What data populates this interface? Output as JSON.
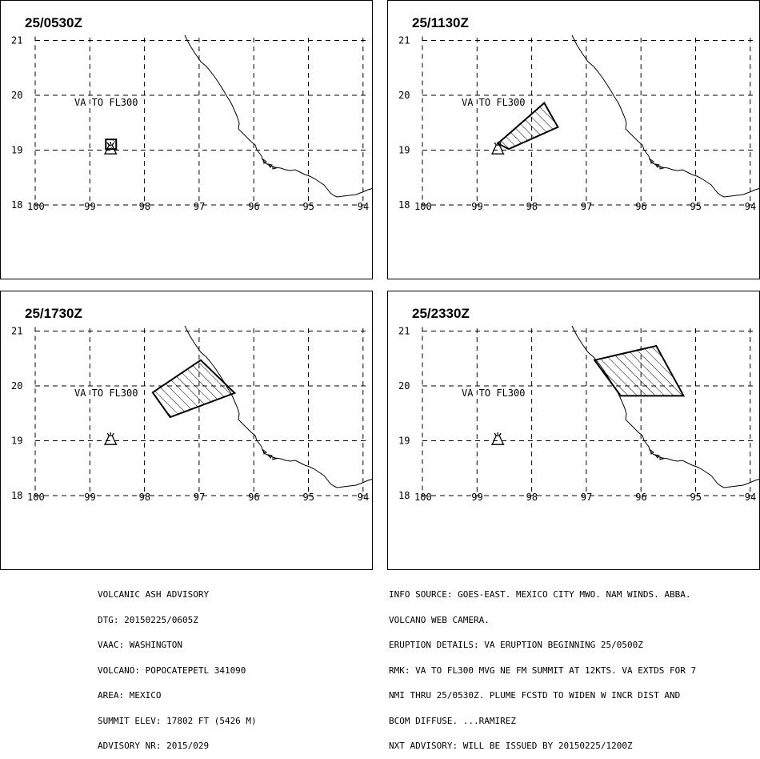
{
  "panels": [
    {
      "time": "25/0530Z",
      "va_label": "VA TO FL300",
      "ash_polygon": null
    },
    {
      "time": "25/1130Z",
      "va_label": "VA TO FL300",
      "ash_polygon": [
        [
          -98.62,
          19.12
        ],
        [
          -97.77,
          19.86
        ],
        [
          -97.52,
          19.42
        ],
        [
          -98.42,
          19.02
        ]
      ]
    },
    {
      "time": "25/1730Z",
      "va_label": "VA TO FL300",
      "ash_polygon": [
        [
          -97.85,
          19.88
        ],
        [
          -96.97,
          20.47
        ],
        [
          -96.35,
          19.87
        ],
        [
          -97.53,
          19.43
        ]
      ]
    },
    {
      "time": "25/2330Z",
      "va_label": "VA TO FL300",
      "ash_polygon": [
        [
          -96.85,
          20.47
        ],
        [
          -95.72,
          20.73
        ],
        [
          -95.22,
          19.82
        ],
        [
          -96.37,
          19.82
        ]
      ]
    }
  ],
  "axis": {
    "lon_ticks": [
      "100",
      "99",
      "98",
      "97",
      "96",
      "95",
      "94"
    ],
    "lat_ticks": [
      "21",
      "20",
      "19",
      "18"
    ]
  },
  "volcano": {
    "lon": -98.62,
    "lat": 19.02
  },
  "advisory_left": [
    "VOLCANIC ASH ADVISORY",
    "DTG: 20150225/0605Z",
    "VAAC: WASHINGTON",
    "VOLCANO: POPOCATEPETL 341090",
    "AREA: MEXICO",
    "SUMMIT ELEV: 17802 FT (5426 M)",
    "ADVISORY NR: 2015/029"
  ],
  "advisory_right": [
    "INFO SOURCE: GOES-EAST. MEXICO CITY MWO. NAM WINDS. ABBA.",
    "VOLCANO WEB CAMERA.",
    "ERUPTION DETAILS: VA ERUPTION BEGINNING 25/0500Z",
    "RMK: VA TO FL300 MVG NE FM SUMMIT AT 12KTS. VA EXTDS FOR 7",
    "NMI THRU 25/0530Z. PLUME FCSTD TO WIDEN W INCR DIST AND",
    "BCOM DIFFUSE. ...RAMIREZ",
    "NXT ADVISORY: WILL BE ISSUED BY 20150225/1200Z"
  ]
}
